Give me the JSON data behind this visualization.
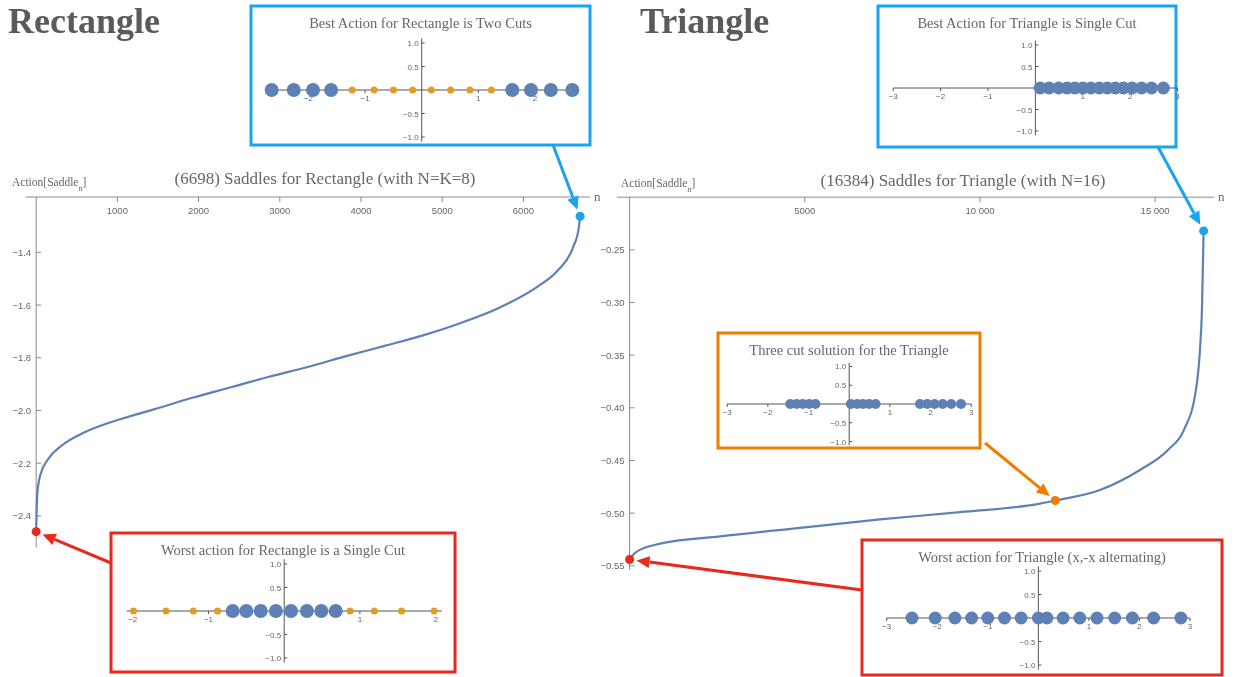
{
  "chart_data": [
    {
      "type": "line",
      "annotations": [
        "Rectangle"
      ],
      "title": "(6698) Saddles for Rectangle (with N=K=8)",
      "xlabel": "n",
      "ylabel": "Action[Saddle$_{n}$]",
      "xlim": [
        -130,
        6820
      ],
      "ylim": [
        -2.52,
        -1.19
      ],
      "xticks": [
        1000,
        2000,
        3000,
        4000,
        5000,
        6000
      ],
      "yticks": [
        {
          "value": -1.4,
          "label": "−1.4"
        },
        {
          "value": -1.6,
          "label": "−1.6"
        },
        {
          "value": -1.8,
          "label": "−1.8"
        },
        {
          "value": -2.0,
          "label": "−2.0"
        },
        {
          "value": -2.2,
          "label": "−2.2"
        },
        {
          "value": -2.4,
          "label": "−2.4"
        }
      ],
      "series": [
        {
          "color": "#5e81b5",
          "x": [
            0,
            14,
            52,
            147,
            312,
            597,
            975,
            1449,
            1922,
            2396,
            2869,
            3343,
            3816,
            4290,
            4763,
            5237,
            5710,
            6184,
            6420,
            6610,
            6681,
            6698
          ],
          "values": [
            -2.46,
            -2.317,
            -2.244,
            -2.185,
            -2.134,
            -2.083,
            -2.039,
            -1.996,
            -1.952,
            -1.912,
            -1.872,
            -1.835,
            -1.794,
            -1.755,
            -1.715,
            -1.667,
            -1.609,
            -1.528,
            -1.47,
            -1.382,
            -1.309,
            -1.263
          ]
        },
        {
          "type": "scatter",
          "color": "#1aa3f0",
          "x": [
            6698
          ],
          "values": [
            -1.263
          ]
        },
        {
          "type": "scatter",
          "color": "#e8291c",
          "x": [
            0
          ],
          "values": [
            -2.46
          ]
        }
      ]
    },
    {
      "type": "scatter",
      "title": "Best Action for Rectangle is Two Cuts",
      "marker": "circle",
      "xlim": [
        -2.75,
        2.76
      ],
      "ylim": [
        -1.1,
        1.1
      ],
      "xticks": [
        {
          "value": -2,
          "label": "−2"
        },
        {
          "value": -1,
          "label": "−1"
        },
        1,
        2
      ],
      "yticks": [
        {
          "value": -1,
          "label": "−1.0"
        },
        {
          "value": -0.5,
          "label": "−0.5"
        },
        {
          "value": 0.5,
          "label": "0.5"
        },
        {
          "value": 1,
          "label": "1.0"
        }
      ],
      "series": [
        {
          "color": "#5e81b5",
          "x": [
            -2.65,
            -2.26,
            -1.92,
            -1.6,
            1.6,
            1.93,
            2.28,
            2.66
          ],
          "values": [
            0,
            0,
            0,
            0,
            0,
            0,
            0,
            0
          ]
        },
        {
          "color": "#e19c24",
          "x": [
            -1.23,
            -0.84,
            -0.5,
            -0.16,
            0.17,
            0.51,
            0.85,
            1.23
          ],
          "values": [
            0,
            0,
            0,
            0,
            0,
            0,
            0,
            0
          ]
        }
      ]
    },
    {
      "type": "scatter",
      "title": "Worst action for Rectangle is a Single Cut",
      "marker": "circle",
      "xlim": [
        -2.08,
        2.08
      ],
      "ylim": [
        -1.1,
        1.1
      ],
      "xticks": [
        {
          "value": -2,
          "label": "−2"
        },
        {
          "value": -1,
          "label": "−1"
        },
        1,
        2
      ],
      "yticks": [
        {
          "value": -1,
          "label": "−1.0"
        },
        {
          "value": -0.5,
          "label": "−0.5"
        },
        {
          "value": 0.5,
          "label": "0.5"
        },
        {
          "value": 1,
          "label": "1.0"
        }
      ],
      "series": [
        {
          "color": "#5e81b5",
          "x": [
            -0.68,
            -0.5,
            -0.31,
            -0.11,
            0.09,
            0.3,
            0.49,
            0.68
          ],
          "values": [
            0,
            0,
            0,
            0,
            0,
            0,
            0,
            0
          ]
        },
        {
          "color": "#e19c24",
          "x": [
            -1.99,
            -1.56,
            -1.2,
            -0.88,
            0.87,
            1.19,
            1.55,
            1.98
          ],
          "values": [
            0,
            0,
            0,
            0,
            0,
            0,
            0,
            0
          ]
        }
      ]
    },
    {
      "type": "line",
      "annotations": [
        "Triangle"
      ],
      "title": "(16384) Saddles for Triangle (with N=16)",
      "xlabel": "n",
      "ylabel": "Action[Saddle$_{n}$]",
      "xlim": [
        -365,
        16680
      ],
      "ylim": [
        -0.554,
        -0.2
      ],
      "xticks": [
        5000,
        {
          "value": 10000,
          "label": "10 000"
        },
        {
          "value": 15000,
          "label": "15 000"
        }
      ],
      "yticks": [
        {
          "value": -0.25,
          "label": "−0.25"
        },
        {
          "value": -0.3,
          "label": "−0.30"
        },
        {
          "value": -0.35,
          "label": "−0.35"
        },
        {
          "value": -0.4,
          "label": "−0.40"
        },
        {
          "value": -0.45,
          "label": "−0.45"
        },
        {
          "value": -0.5,
          "label": "−0.50"
        },
        {
          "value": -0.55,
          "label": "−0.55"
        }
      ],
      "series": [
        {
          "color": "#5e81b5",
          "x": [
            0,
            183,
            868,
            2580,
            4863,
            7146,
            9430,
            11713,
            12147,
            13425,
            14567,
            15366,
            15822,
            16165,
            16279,
            16336,
            16384
          ],
          "values": [
            -0.544,
            -0.537,
            -0.529,
            -0.522,
            -0.514,
            -0.506,
            -0.499,
            -0.491,
            -0.488,
            -0.478,
            -0.459,
            -0.44,
            -0.421,
            -0.383,
            -0.345,
            -0.307,
            -0.232
          ]
        },
        {
          "type": "scatter",
          "color": "#1aa3f0",
          "x": [
            16384
          ],
          "values": [
            -0.232
          ]
        },
        {
          "type": "scatter",
          "color": "#f07c00",
          "x": [
            12147
          ],
          "values": [
            -0.488
          ]
        },
        {
          "type": "scatter",
          "color": "#e8291c",
          "x": [
            0
          ],
          "values": [
            -0.544
          ]
        }
      ]
    },
    {
      "type": "scatter",
      "title": "Best Action for Triangle is Single Cut",
      "marker": "circle",
      "xlim": [
        -3,
        3
      ],
      "ylim": [
        -1.1,
        1.1
      ],
      "xticks": [
        {
          "value": -3,
          "label": "−3"
        },
        {
          "value": -2,
          "label": "−2"
        },
        {
          "value": -1,
          "label": "−1"
        },
        1,
        2,
        3
      ],
      "yticks": [
        {
          "value": -1,
          "label": "−1.0"
        },
        {
          "value": -0.5,
          "label": "−0.5"
        },
        {
          "value": 0.5,
          "label": "0.5"
        },
        {
          "value": 1,
          "label": "1.0"
        }
      ],
      "series": [
        {
          "color": "#5e81b5",
          "x": [
            0.1,
            0.29,
            0.49,
            0.67,
            0.83,
            1.0,
            1.17,
            1.35,
            1.52,
            1.69,
            1.86,
            2.04,
            2.24,
            2.45,
            2.7
          ],
          "values": [
            0,
            0,
            0,
            0,
            0,
            0,
            0,
            0,
            0,
            0,
            0,
            0,
            0,
            0,
            0
          ]
        }
      ]
    },
    {
      "type": "scatter",
      "title": "Three cut solution for the Triangle",
      "marker": "circle",
      "xlim": [
        -3,
        3
      ],
      "ylim": [
        -1.1,
        1.1
      ],
      "xticks": [
        {
          "value": -3,
          "label": "−3"
        },
        {
          "value": -2,
          "label": "−2"
        },
        {
          "value": -1,
          "label": "−1"
        },
        1,
        2,
        3
      ],
      "yticks": [
        {
          "value": -1,
          "label": "−1.0"
        },
        {
          "value": -0.5,
          "label": "−0.5"
        },
        {
          "value": 0.5,
          "label": "0.5"
        },
        {
          "value": 1,
          "label": "1.0"
        }
      ],
      "series": [
        {
          "color": "#5e81b5",
          "x": [
            -1.45,
            -1.29,
            -1.14,
            -0.98,
            -0.83,
            0.04,
            0.2,
            0.34,
            0.49,
            0.65,
            1.74,
            1.92,
            2.1,
            2.3,
            2.51,
            2.75
          ],
          "values": [
            0,
            0,
            0,
            0,
            0,
            0,
            0,
            0,
            0,
            0,
            0,
            0,
            0,
            0,
            0,
            0
          ]
        }
      ]
    },
    {
      "type": "scatter",
      "title": "Worst action for Triangle (x,-x alternating)",
      "marker": "circle",
      "xlim": [
        -3,
        3
      ],
      "ylim": [
        -1.1,
        1.1
      ],
      "xticks": [
        {
          "value": -3,
          "label": "−3"
        },
        {
          "value": -2,
          "label": "−2"
        },
        {
          "value": -1,
          "label": "−1"
        },
        1,
        2,
        3
      ],
      "yticks": [
        {
          "value": -1,
          "label": "−1.0"
        },
        {
          "value": -0.5,
          "label": "−0.5"
        },
        {
          "value": 0.5,
          "label": "0.5"
        },
        {
          "value": 1,
          "label": "1.0"
        }
      ],
      "series": [
        {
          "color": "#5e81b5",
          "x": [
            -2.5,
            -2.04,
            -1.65,
            -1.32,
            -1.0,
            -0.67,
            -0.34,
            0.0,
            0.17,
            0.49,
            0.82,
            1.16,
            1.51,
            1.86,
            2.28,
            2.82
          ],
          "values": [
            0,
            0,
            0,
            0,
            0,
            0,
            0,
            0,
            0,
            0,
            0,
            0,
            0,
            0,
            0,
            0
          ]
        }
      ]
    }
  ]
}
